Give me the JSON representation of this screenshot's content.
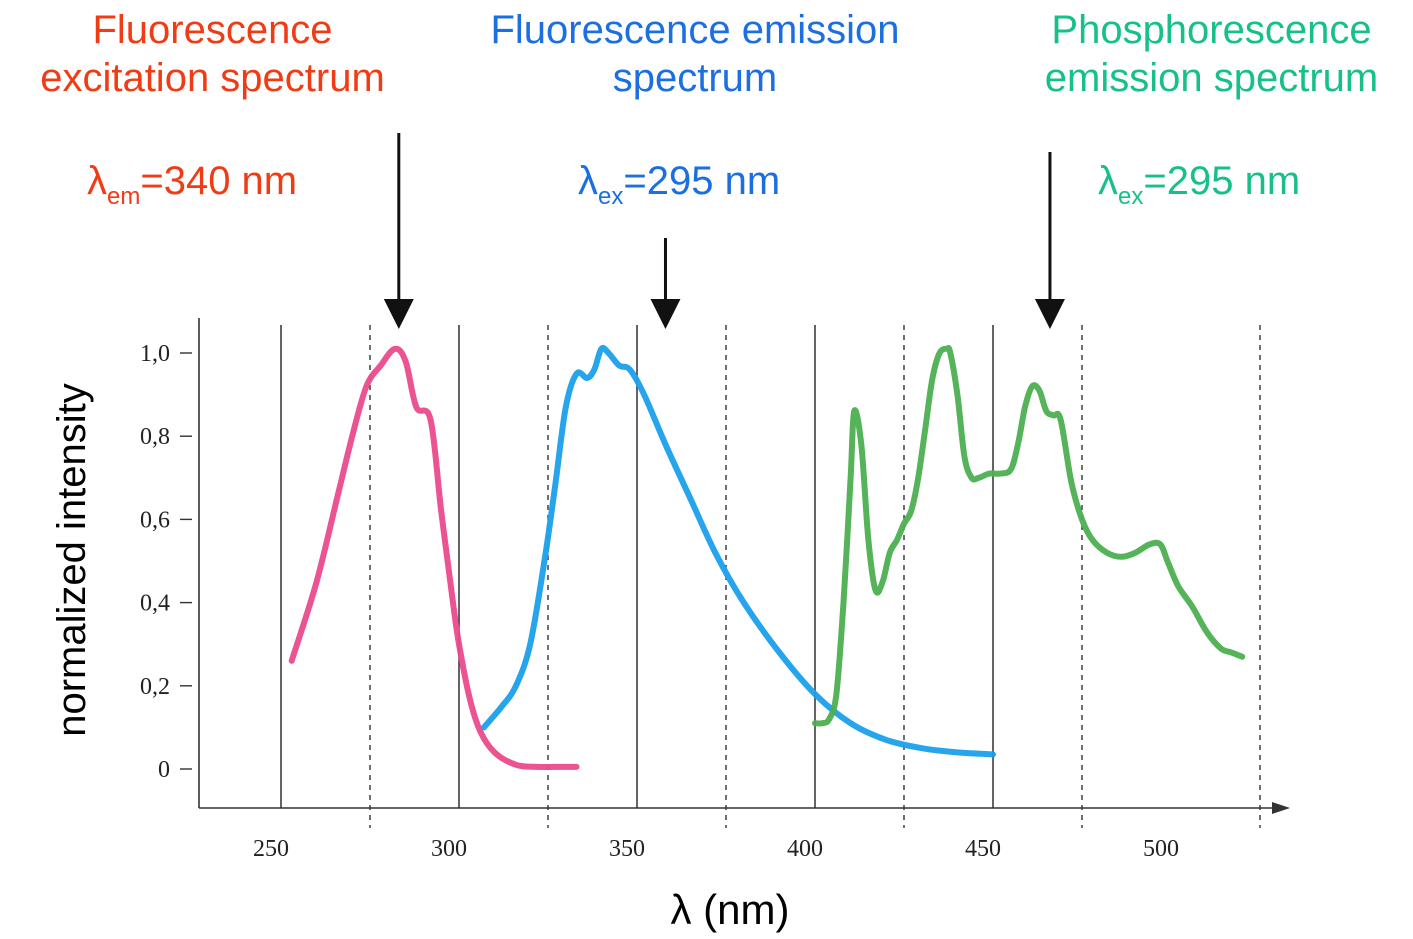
{
  "annotations": {
    "excitation": {
      "line1": "Fluorescence",
      "line2": "excitation spectrum",
      "lambda_symbol": "λ",
      "lambda_sub": "em",
      "lambda_value": "=340 nm",
      "color": "#f03c15"
    },
    "fluorescence_emission": {
      "line1": "Fluorescence emission",
      "line2": "spectrum",
      "lambda_symbol": "λ",
      "lambda_sub": "ex",
      "lambda_value": "=295 nm",
      "color": "#1b6fe0"
    },
    "phosphorescence": {
      "line1": "Phosphorescence",
      "line2": "emission spectrum",
      "lambda_symbol": "λ",
      "lambda_sub": "ex",
      "lambda_value": "=295 nm",
      "color": "#17c08a"
    }
  },
  "chart_data": {
    "type": "line",
    "xlabel": "λ (nm)",
    "ylabel": "normalized intensity",
    "xlim": [
      230,
      530
    ],
    "ylim": [
      0,
      1.0
    ],
    "x_ticks": [
      "250",
      "300",
      "350",
      "400",
      "450",
      "500"
    ],
    "y_ticks": [
      "0",
      "0,2",
      "0,4",
      "0,6",
      "0,8",
      "1,0"
    ],
    "grid": "solid lines at 250, 300, 350, 400, 450; dashed lines at 275, 325, 375, 425, 475, 525",
    "arrows_at_nm": [
      280,
      358,
      466
    ],
    "series": [
      {
        "color": "#ea4a8c",
        "x": [
          253,
          260,
          266,
          270,
          274,
          278,
          282,
          285,
          288,
          292,
          295,
          298,
          300,
          303,
          306,
          310,
          316,
          322,
          327,
          333
        ],
        "y": [
          0.26,
          0.45,
          0.66,
          0.8,
          0.92,
          0.97,
          1.01,
          0.98,
          0.87,
          0.84,
          0.62,
          0.42,
          0.3,
          0.17,
          0.09,
          0.04,
          0.01,
          0.005,
          0.005,
          0.005
        ]
      },
      {
        "color": "#1aa0ec",
        "x": [
          307,
          312,
          316,
          320,
          324,
          327,
          330,
          333,
          336,
          338,
          340,
          342,
          345,
          348,
          352,
          358,
          365,
          372,
          380,
          390,
          400,
          410,
          420,
          430,
          440,
          450
        ],
        "y": [
          0.1,
          0.15,
          0.2,
          0.3,
          0.5,
          0.68,
          0.87,
          0.95,
          0.94,
          0.96,
          1.01,
          1.0,
          0.97,
          0.96,
          0.9,
          0.78,
          0.65,
          0.52,
          0.4,
          0.28,
          0.18,
          0.11,
          0.07,
          0.05,
          0.04,
          0.035
        ]
      },
      {
        "color": "#4caf50",
        "x": [
          400,
          402,
          404,
          406,
          408,
          410,
          411,
          413,
          415,
          417,
          419,
          421,
          423,
          425,
          427,
          429,
          431,
          433,
          435,
          437,
          438,
          440,
          442,
          444,
          446,
          449,
          452,
          455,
          457,
          459,
          461,
          463,
          465,
          467,
          469,
          472,
          475,
          478,
          482,
          486,
          490,
          494,
          497,
          499,
          502,
          506,
          510,
          514,
          517,
          520
        ],
        "y": [
          0.11,
          0.11,
          0.12,
          0.18,
          0.4,
          0.7,
          0.86,
          0.78,
          0.55,
          0.43,
          0.45,
          0.52,
          0.55,
          0.59,
          0.62,
          0.7,
          0.82,
          0.94,
          1.0,
          1.01,
          1.0,
          0.9,
          0.75,
          0.7,
          0.7,
          0.71,
          0.71,
          0.72,
          0.78,
          0.87,
          0.92,
          0.91,
          0.86,
          0.85,
          0.84,
          0.69,
          0.6,
          0.55,
          0.52,
          0.51,
          0.52,
          0.54,
          0.54,
          0.5,
          0.44,
          0.39,
          0.33,
          0.29,
          0.28,
          0.27
        ]
      }
    ]
  }
}
